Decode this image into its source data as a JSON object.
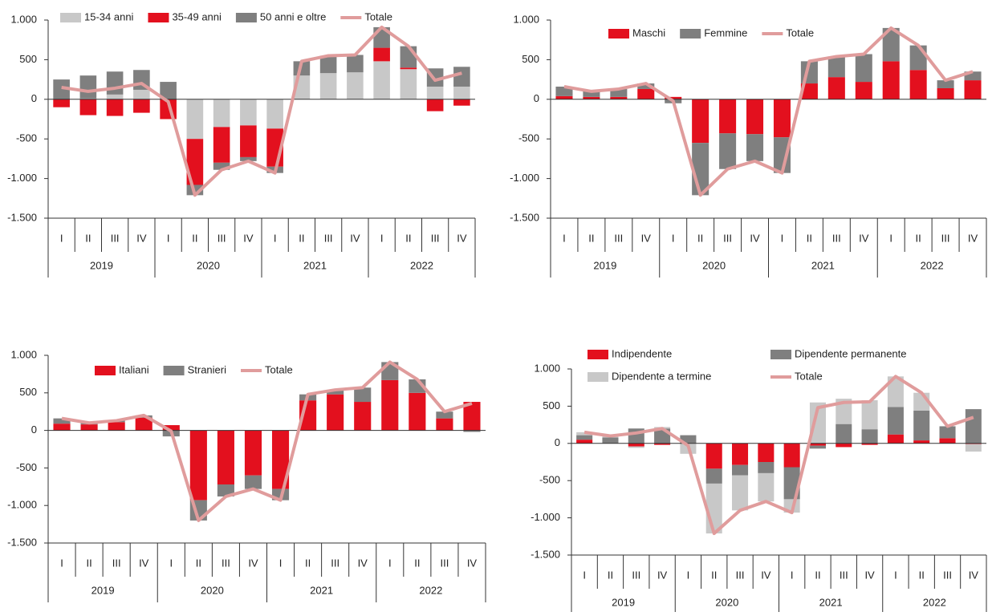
{
  "chart_data": [
    {
      "type": "bar",
      "stacked": true,
      "categories": [
        "I",
        "II",
        "III",
        "IV",
        "I",
        "II",
        "III",
        "IV",
        "I",
        "II",
        "III",
        "IV",
        "I",
        "II",
        "III",
        "IV"
      ],
      "groups": [
        "2019",
        "2020",
        "2021",
        "2022"
      ],
      "ylim": [
        -1500,
        1000
      ],
      "yticks": [
        {
          "value": -1500,
          "label": "-1.500"
        },
        {
          "value": -1000,
          "label": "-1.000"
        },
        -500,
        0,
        500,
        {
          "value": 1000,
          "label": "1.000"
        }
      ],
      "series": [
        {
          "name": "15-34 anni",
          "color": "#c8c8c8",
          "values": [
            0,
            10,
            60,
            120,
            0,
            -500,
            -350,
            -330,
            -370,
            300,
            330,
            340,
            480,
            380,
            160,
            160
          ]
        },
        {
          "name": "35-49 anni",
          "color": "#e3101e",
          "values": [
            -100,
            -200,
            -210,
            -170,
            -250,
            -580,
            -450,
            -400,
            -480,
            0,
            0,
            0,
            170,
            20,
            -150,
            -80
          ]
        },
        {
          "name": "50 anni e oltre",
          "color": "#7f7f7f",
          "values": [
            250,
            290,
            290,
            250,
            220,
            -130,
            -90,
            -50,
            -80,
            180,
            220,
            220,
            260,
            270,
            230,
            250
          ]
        },
        {
          "name": "Totale",
          "type": "line",
          "color": "#e09c9c",
          "values": [
            150,
            100,
            140,
            200,
            -30,
            -1210,
            -890,
            -780,
            -930,
            480,
            550,
            560,
            910,
            670,
            240,
            330
          ]
        }
      ]
    },
    {
      "type": "bar",
      "stacked": true,
      "categories": [
        "I",
        "II",
        "III",
        "IV",
        "I",
        "II",
        "III",
        "IV",
        "I",
        "II",
        "III",
        "IV",
        "I",
        "II",
        "III",
        "IV"
      ],
      "groups": [
        "2019",
        "2020",
        "2021",
        "2022"
      ],
      "ylim": [
        -1500,
        1000
      ],
      "yticks": [
        {
          "value": -1500,
          "label": "-1.500"
        },
        {
          "value": -1000,
          "label": "-1.000"
        },
        -500,
        0,
        500,
        {
          "value": 1000,
          "label": "1.000"
        }
      ],
      "series": [
        {
          "name": "Maschi",
          "color": "#e3101e",
          "values": [
            40,
            30,
            30,
            130,
            30,
            -550,
            -430,
            -440,
            -480,
            200,
            280,
            220,
            480,
            370,
            140,
            240
          ]
        },
        {
          "name": "Femmine",
          "color": "#7f7f7f",
          "values": [
            120,
            70,
            100,
            70,
            -50,
            -660,
            -450,
            -340,
            -450,
            280,
            260,
            350,
            420,
            310,
            100,
            110
          ]
        },
        {
          "name": "Totale",
          "type": "line",
          "color": "#e09c9c",
          "values": [
            160,
            100,
            130,
            200,
            -20,
            -1210,
            -880,
            -780,
            -930,
            480,
            540,
            570,
            900,
            680,
            240,
            350
          ]
        }
      ]
    },
    {
      "type": "bar",
      "stacked": true,
      "categories": [
        "I",
        "II",
        "III",
        "IV",
        "I",
        "II",
        "III",
        "IV",
        "I",
        "II",
        "III",
        "IV",
        "I",
        "II",
        "III",
        "IV"
      ],
      "groups": [
        "2019",
        "2020",
        "2021",
        "2022"
      ],
      "ylim": [
        -1500,
        1000
      ],
      "yticks": [
        {
          "value": -1500,
          "label": "-1.500"
        },
        {
          "value": -1000,
          "label": "-1.000"
        },
        -500,
        0,
        500,
        {
          "value": 1000,
          "label": "1.000"
        }
      ],
      "series": [
        {
          "name": "Italiani",
          "color": "#e3101e",
          "values": [
            90,
            80,
            110,
            170,
            70,
            -930,
            -720,
            -600,
            -780,
            400,
            480,
            380,
            670,
            500,
            160,
            380
          ]
        },
        {
          "name": "Stranieri",
          "color": "#7f7f7f",
          "values": [
            70,
            20,
            20,
            30,
            -80,
            -270,
            -160,
            -180,
            -150,
            80,
            60,
            190,
            240,
            180,
            90,
            -20
          ]
        },
        {
          "name": "Totale",
          "type": "line",
          "color": "#e09c9c",
          "values": [
            160,
            100,
            130,
            200,
            -10,
            -1200,
            -880,
            -780,
            -930,
            480,
            540,
            570,
            910,
            680,
            250,
            360
          ]
        }
      ]
    },
    {
      "type": "bar",
      "stacked": true,
      "categories": [
        "I",
        "II",
        "III",
        "IV",
        "I",
        "II",
        "III",
        "IV",
        "I",
        "II",
        "III",
        "IV",
        "I",
        "II",
        "III",
        "IV"
      ],
      "groups": [
        "2019",
        "2020",
        "2021",
        "2022"
      ],
      "ylim": [
        -1500,
        1000
      ],
      "yticks": [
        {
          "value": -1500,
          "label": "-1.500"
        },
        {
          "value": -1000,
          "label": "-1.000"
        },
        -500,
        0,
        500,
        {
          "value": 1000,
          "label": "1.000"
        }
      ],
      "series": [
        {
          "name": "Indipendente",
          "color": "#e3101e",
          "values": [
            50,
            0,
            -40,
            -20,
            0,
            -340,
            -290,
            -250,
            -320,
            -30,
            -50,
            -20,
            120,
            40,
            70,
            -10
          ]
        },
        {
          "name": "Dipendente permanente",
          "color": "#7f7f7f",
          "values": [
            60,
            80,
            200,
            200,
            110,
            -200,
            -140,
            -150,
            -430,
            -40,
            260,
            190,
            370,
            400,
            160,
            460
          ]
        },
        {
          "name": "Dipendente a termine",
          "color": "#c8c8c8",
          "values": [
            40,
            20,
            -20,
            20,
            -140,
            -670,
            -470,
            -380,
            -180,
            550,
            340,
            390,
            410,
            240,
            0,
            -100
          ]
        },
        {
          "name": "Totale",
          "type": "line",
          "color": "#e09c9c",
          "values": [
            150,
            100,
            140,
            200,
            -30,
            -1210,
            -900,
            -780,
            -930,
            480,
            550,
            560,
            900,
            680,
            230,
            350
          ]
        }
      ]
    }
  ]
}
